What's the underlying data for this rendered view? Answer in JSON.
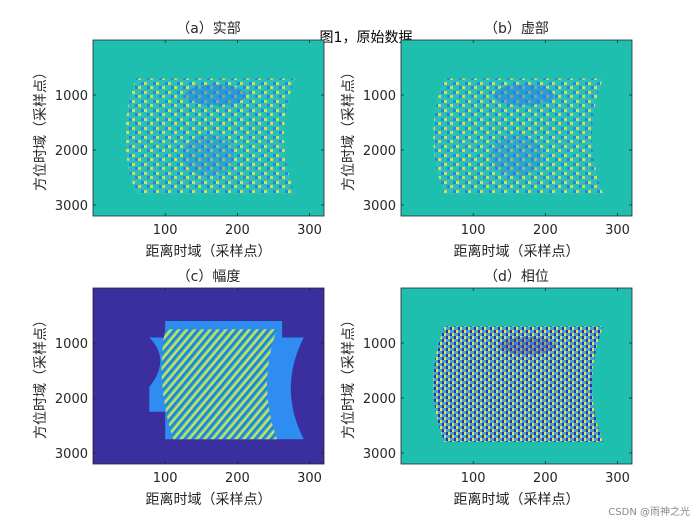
{
  "figure_title": "图1，原始数据",
  "watermark": "CSDN @雨神之光",
  "colors": {
    "background_teal": "#1fbfb0",
    "background_navy": "#3b2e9e",
    "pattern_yellow": "#e5e34a",
    "pattern_blue": "#2a7fe6",
    "pattern_cyan": "#2cc0b8",
    "band_blue": "#2f8cf0"
  },
  "chart_data": [
    {
      "type": "heatmap",
      "title": "（a）实部",
      "xlabel": "距离时域（采样点）",
      "ylabel": "方位时域（采样点）",
      "xlim": [
        0,
        320
      ],
      "ylim": [
        3200,
        0
      ],
      "xticks": [
        100,
        200,
        300
      ],
      "yticks": [
        1000,
        2000,
        3000
      ],
      "background": "teal",
      "pattern": "fringes"
    },
    {
      "type": "heatmap",
      "title": "（b）虚部",
      "xlabel": "距离时域（采样点）",
      "ylabel": "方位时域（采样点）",
      "xlim": [
        0,
        320
      ],
      "ylim": [
        3200,
        0
      ],
      "xticks": [
        100,
        200,
        300
      ],
      "yticks": [
        1000,
        2000,
        3000
      ],
      "background": "teal",
      "pattern": "fringes"
    },
    {
      "type": "heatmap",
      "title": "（c）幅度",
      "xlabel": "距离时域（采样点）",
      "ylabel": "方位时域（采样点）",
      "xlim": [
        0,
        320
      ],
      "ylim": [
        3200,
        0
      ],
      "xticks": [
        100,
        200,
        300
      ],
      "yticks": [
        1000,
        2000,
        3000
      ],
      "background": "navy",
      "pattern": "amplitude"
    },
    {
      "type": "heatmap",
      "title": "（d）相位",
      "xlabel": "距离时域（采样点）",
      "ylabel": "方位时域（采样点）",
      "xlim": [
        0,
        320
      ],
      "ylim": [
        3200,
        0
      ],
      "xticks": [
        100,
        200,
        300
      ],
      "yticks": [
        1000,
        2000,
        3000
      ],
      "background": "teal",
      "pattern": "phase"
    }
  ]
}
